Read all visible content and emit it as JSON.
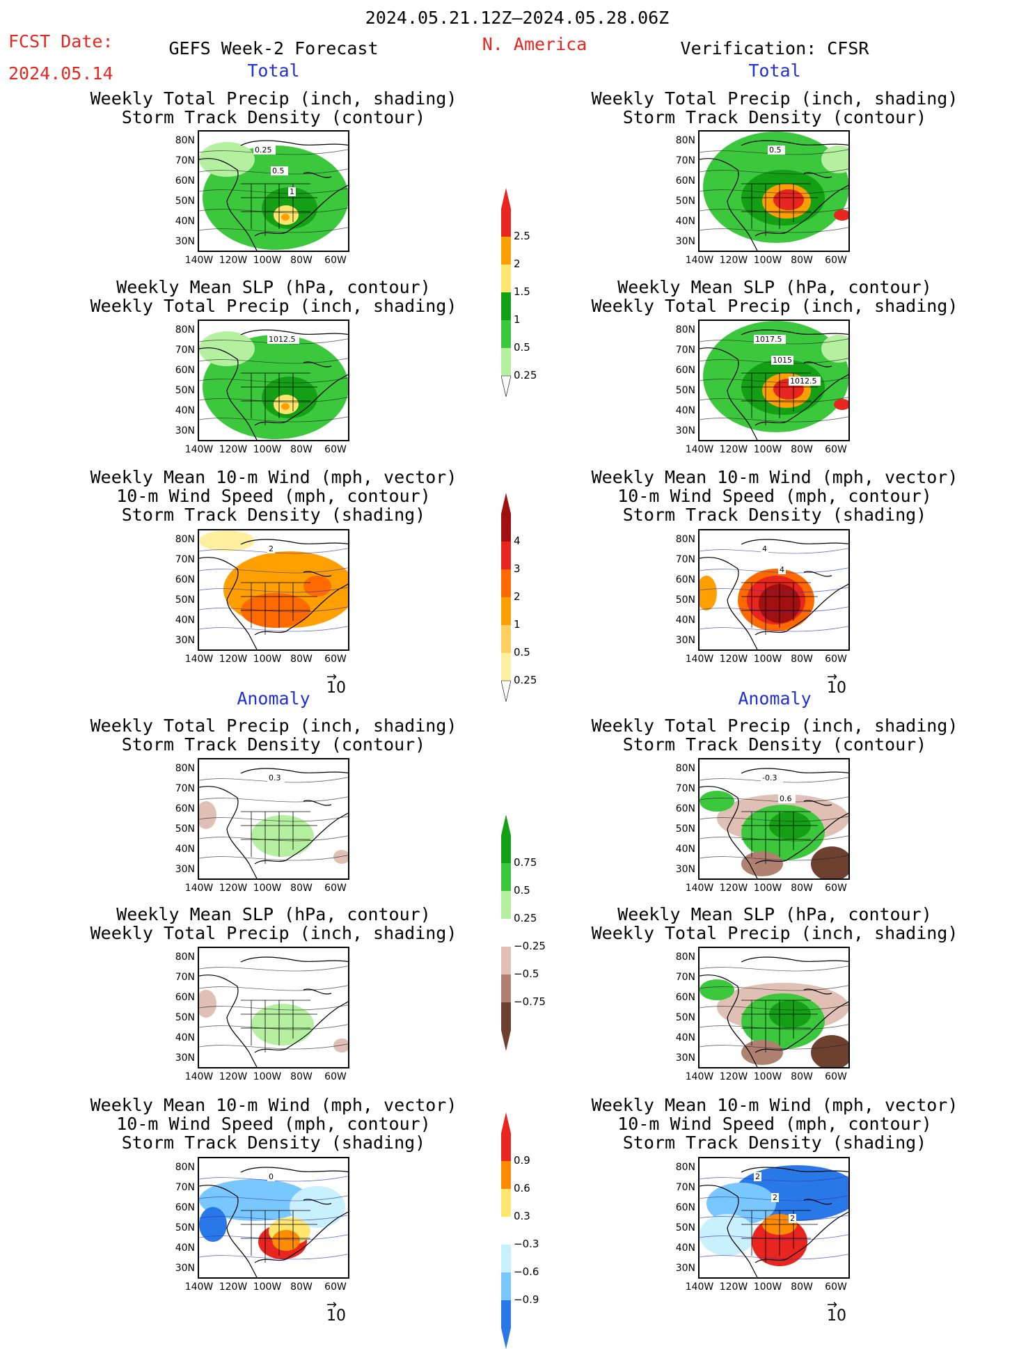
{
  "header": {
    "date_range": "2024.05.21.12Z–2024.05.28.06Z",
    "region": "N. America",
    "fcst_label": "FCST Date:",
    "fcst_date": "2024.05.14",
    "left_title": "GEFS Week-2 Forecast",
    "right_title": "Verification: CFSR"
  },
  "sections": {
    "total": "Total",
    "anomaly": "Anomaly"
  },
  "panel_titles": {
    "precip_storm": [
      "Weekly Total Precip (inch, shading)",
      "Storm Track Density (contour)"
    ],
    "slp_precip": [
      "Weekly Mean SLP (hPa, contour)",
      "Weekly Total Precip (inch, shading)"
    ],
    "wind_storm": [
      "Weekly Mean 10-m Wind (mph, vector)",
      "10-m Wind Speed (mph, contour)",
      "Storm Track Density (shading)"
    ]
  },
  "axes": {
    "lat_labels": [
      "80N",
      "70N",
      "60N",
      "50N",
      "40N",
      "30N"
    ],
    "lon_labels": [
      "140W",
      "120W",
      "100W",
      "80W",
      "60W"
    ]
  },
  "vector_ref": "10",
  "colorbars": {
    "precip_total": {
      "labels": [
        "2.5",
        "2",
        "1.5",
        "1",
        "0.5",
        "0.25"
      ],
      "colors": [
        "#e8251f",
        "#ffa000",
        "#ffe66e",
        "#14a014",
        "#3cc83c",
        "#b4f0a0"
      ]
    },
    "storm_total": {
      "labels": [
        "4",
        "3",
        "2",
        "1",
        "0.5",
        "0.25"
      ],
      "colors": [
        "#a01010",
        "#e8251f",
        "#ff6a00",
        "#ffa000",
        "#ffd060",
        "#fff0a0"
      ]
    },
    "precip_anom": {
      "labels": [
        "0.75",
        "0.5",
        "0.25",
        "−0.25",
        "−0.5",
        "−0.75"
      ],
      "colors": [
        "#14a014",
        "#3cc83c",
        "#b4f0a0",
        "#ffffff",
        "#e0c0b4",
        "#b08070",
        "#6e4030"
      ]
    },
    "storm_anom": {
      "labels": [
        "0.9",
        "0.6",
        "0.3",
        "−0.3",
        "−0.6",
        "−0.9"
      ],
      "colors": [
        "#e8251f",
        "#ff8c00",
        "#ffe66e",
        "#ffffff",
        "#c8f0ff",
        "#78c8ff",
        "#2878e8"
      ]
    },
    "tip_colors": {
      "precip_total": "#e8251f",
      "storm_total": "#a01010",
      "precip_anom": "#14a014",
      "precip_anom_low": "#6e4030",
      "storm_anom": "#e8251f",
      "storm_anom_low": "#2878e8"
    }
  },
  "contour_labels": {
    "l1": [
      "0.25",
      "0.5",
      "1"
    ],
    "r1": [
      "0.5"
    ],
    "l2": [
      "1012.5"
    ],
    "r2": [
      "1017.5",
      "1015",
      "1012.5"
    ],
    "l3": [
      "2"
    ],
    "r3": [
      "4",
      "4"
    ],
    "l4": [
      "0.3"
    ],
    "r4": [
      "-0.3",
      "0.6"
    ],
    "l6": [
      "0"
    ],
    "r6": [
      "2",
      "2",
      "2"
    ]
  }
}
